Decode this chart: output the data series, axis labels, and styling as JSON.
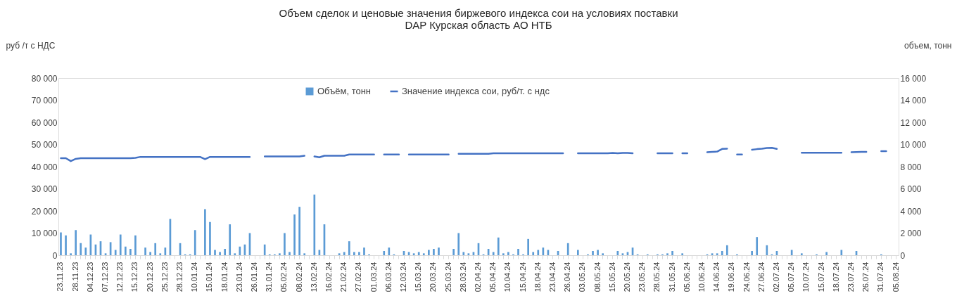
{
  "chart_data": {
    "type": "bar",
    "title": "Объем сделок и ценовые значения биржевого индекса сои на условиях поставки\nDAP Курская область АО НТБ",
    "ylabel": "руб /т с НДС",
    "y2label": "объем, тонн",
    "legend": "top",
    "categories": [
      "23.11.23",
      null,
      null,
      "28.11.23",
      null,
      null,
      "04.12.23",
      null,
      null,
      "07.12.23",
      null,
      null,
      "12.12.23",
      null,
      null,
      "15.12.23",
      null,
      null,
      "20.12.23",
      null,
      null,
      "25.12.23",
      null,
      null,
      "28.12.23",
      null,
      null,
      "10.01.24",
      null,
      null,
      "15.01.24",
      null,
      null,
      "18.01.24",
      null,
      null,
      "23.01.24",
      null,
      null,
      "26.01.24",
      null,
      null,
      "31.01.24",
      null,
      null,
      "05.02.24",
      null,
      null,
      "08.02.24",
      null,
      null,
      "13.02.24",
      null,
      null,
      "16.02.24",
      null,
      null,
      "21.02.24",
      null,
      null,
      "27.02.24",
      null,
      null,
      "01.03.24",
      null,
      null,
      "06.03.24",
      null,
      null,
      "12.03.24",
      null,
      null,
      "15.03.24",
      null,
      null,
      "20.03.24",
      null,
      null,
      "25.03.24",
      null,
      null,
      "28.03.24",
      null,
      null,
      "02.04.24",
      null,
      null,
      "05.04.24",
      null,
      null,
      "10.04.24",
      null,
      null,
      "15.04.24",
      null,
      null,
      "18.04.24",
      null,
      null,
      "23.04.24",
      null,
      null,
      "26.04.24",
      null,
      null,
      "03.05.24",
      null,
      null,
      "08.05.24",
      null,
      null,
      "15.05.24",
      null,
      null,
      "20.05.24",
      null,
      null,
      "23.05.24",
      null,
      null,
      "28.05.24",
      null,
      null,
      "31.05.24",
      null,
      null,
      "05.06.24",
      null,
      null,
      "10.06.24",
      null,
      null,
      "14.06.24",
      null,
      null,
      "19.06.24",
      null,
      null,
      "24.06.24",
      null,
      null,
      "27.06.24",
      null,
      null,
      "02.07.24",
      null,
      null,
      "05.07.24",
      null,
      null,
      "10.07.24",
      null,
      null,
      "15.07.24",
      null,
      null,
      "18.07.24",
      null,
      null,
      "23.07.24",
      null,
      null,
      "26.07.24",
      null,
      null,
      "31.07.24",
      null,
      null,
      "05.08.24"
    ],
    "series": [
      {
        "name": "Объём, тонн",
        "axis": "y2",
        "color": "#5b9bd5",
        "values": [
          2060,
          1790,
          170,
          2270,
          1090,
          690,
          1870,
          970,
          1260,
          170,
          1180,
          480,
          1870,
          780,
          570,
          1790,
          null,
          690,
          290,
          1090,
          170,
          690,
          3280,
          null,
          1090,
          80,
          80,
          2270,
          null,
          4160,
          3000,
          480,
          290,
          570,
          2790,
          170,
          780,
          970,
          2000,
          null,
          null,
          970,
          80,
          80,
          170,
          2000,
          290,
          3680,
          4370,
          170,
          null,
          5480,
          480,
          2790,
          null,
          null,
          170,
          290,
          1260,
          290,
          290,
          690,
          80,
          null,
          null,
          380,
          690,
          80,
          null,
          380,
          290,
          170,
          290,
          170,
          480,
          570,
          690,
          null,
          null,
          570,
          2000,
          290,
          170,
          290,
          1090,
          80,
          570,
          290,
          1600,
          170,
          290,
          80,
          570,
          80,
          1470,
          290,
          480,
          690,
          480,
          null,
          380,
          null,
          1090,
          null,
          480,
          null,
          80,
          380,
          480,
          170,
          null,
          null,
          380,
          170,
          290,
          690,
          80,
          null,
          80,
          null,
          80,
          80,
          170,
          380,
          null,
          170,
          null,
          null,
          null,
          null,
          80,
          170,
          170,
          380,
          900,
          null,
          80,
          null,
          null,
          380,
          1640,
          null,
          900,
          80,
          380,
          null,
          null,
          480,
          null,
          170,
          null,
          null,
          80,
          null,
          290,
          null,
          null,
          480,
          null,
          null,
          380,
          null,
          null,
          null,
          null,
          80,
          null,
          null,
          null
        ]
      },
      {
        "name": "Значение индекса сои, руб/т. с ндс",
        "type": "line",
        "color": "#4472c4",
        "values": [
          43800,
          43800,
          42500,
          43500,
          43800,
          43800,
          43800,
          43800,
          43800,
          43800,
          43800,
          43800,
          43800,
          43800,
          43800,
          44000,
          44400,
          44400,
          44400,
          44400,
          44400,
          44400,
          44400,
          44400,
          44400,
          44400,
          44400,
          44400,
          44400,
          43400,
          44400,
          44400,
          44400,
          44400,
          44400,
          44400,
          44400,
          44400,
          44400,
          null,
          null,
          44600,
          44600,
          44600,
          44600,
          44600,
          44600,
          44600,
          44600,
          44900,
          null,
          44600,
          44200,
          44900,
          44900,
          44900,
          44900,
          44900,
          45500,
          45500,
          45500,
          45500,
          45500,
          45500,
          null,
          45500,
          45500,
          45500,
          45500,
          null,
          45500,
          45500,
          45500,
          45500,
          45500,
          45500,
          45500,
          45500,
          45500,
          null,
          45800,
          45800,
          45800,
          45800,
          45800,
          45800,
          45800,
          46000,
          46000,
          46000,
          46000,
          46000,
          46000,
          46000,
          46000,
          46000,
          46000,
          46000,
          46000,
          46000,
          46000,
          46000,
          null,
          null,
          46000,
          46000,
          46000,
          46000,
          46000,
          46000,
          46000,
          46200,
          46000,
          46200,
          46200,
          46000,
          null,
          null,
          null,
          null,
          46000,
          46000,
          46000,
          46000,
          null,
          46000,
          46000,
          null,
          null,
          null,
          46500,
          46700,
          46800,
          48000,
          48100,
          null,
          45500,
          45500,
          null,
          47600,
          47900,
          48100,
          48400,
          48500,
          48000,
          null,
          null,
          null,
          null,
          46300,
          46300,
          46300,
          46300,
          46300,
          46300,
          46300,
          46300,
          46300,
          null,
          46500,
          46600,
          46700,
          46700,
          null,
          null,
          47000,
          47000,
          null,
          null
        ]
      }
    ],
    "ylim": [
      0,
      80000
    ],
    "yticks": [
      0,
      {
        "value": 10000,
        "label": "10 000"
      },
      {
        "value": 20000,
        "label": "20 000"
      },
      {
        "value": 30000,
        "label": "30 000"
      },
      {
        "value": 40000,
        "label": "40 000"
      },
      {
        "value": 50000,
        "label": "50 000"
      },
      {
        "value": 60000,
        "label": "60 000"
      },
      {
        "value": 70000,
        "label": "70 000"
      },
      {
        "value": 80000,
        "label": "80 000"
      }
    ],
    "y2lim": [
      0,
      16000
    ],
    "y2ticks": [
      0,
      {
        "value": 2000,
        "label": "2 000"
      },
      {
        "value": 4000,
        "label": "4 000"
      },
      {
        "value": 6000,
        "label": "6 000"
      },
      {
        "value": 8000,
        "label": "8 000"
      },
      {
        "value": 10000,
        "label": "10 000"
      },
      {
        "value": 12000,
        "label": "12 000"
      },
      {
        "value": 14000,
        "label": "14 000"
      },
      {
        "value": 16000,
        "label": "16 000"
      }
    ]
  }
}
